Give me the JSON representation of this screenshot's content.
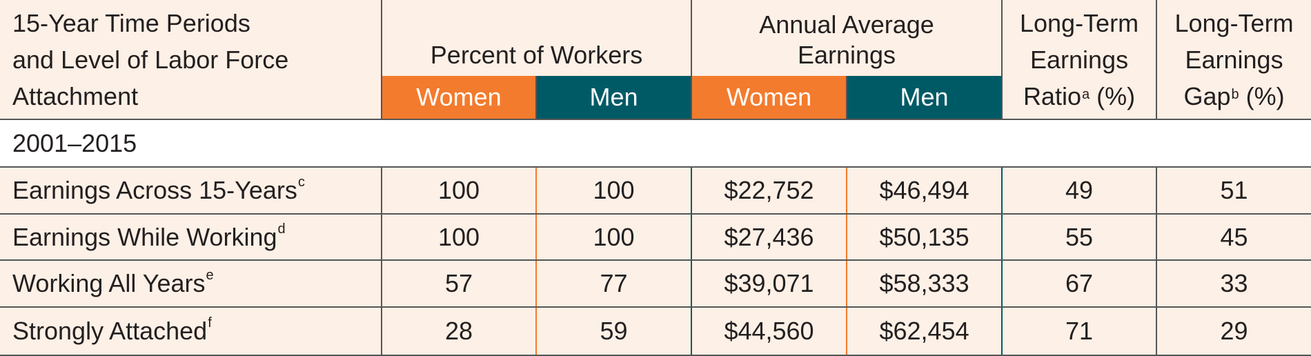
{
  "header": {
    "col0": [
      "15-Year Time Periods",
      "and Level of Labor Force",
      "Attachment"
    ],
    "percent_workers": "Percent of Workers",
    "annual_avg": [
      "Annual Average",
      "Earnings"
    ],
    "ratio": {
      "line1": "Long-Term",
      "line2": "Earnings",
      "line3": "Ratio",
      "sup": "a",
      "unit": " (%)"
    },
    "gap": {
      "line1": "Long-Term",
      "line2": "Earnings",
      "line3": "Gap",
      "sup": "b",
      "unit": " (%)"
    },
    "women": "Women",
    "men": "Men"
  },
  "section": "2001–2015",
  "rows": [
    {
      "label": "Earnings Across 15-Years",
      "sup": "c",
      "pct_women": "100",
      "pct_men": "100",
      "earn_women": "$22,752",
      "earn_men": "$46,494",
      "ratio": "49",
      "gap": "51"
    },
    {
      "label": "Earnings While Working",
      "sup": "d",
      "pct_women": "100",
      "pct_men": "100",
      "earn_women": "$27,436",
      "earn_men": "$50,135",
      "ratio": "55",
      "gap": "45"
    },
    {
      "label": "Working All Years",
      "sup": "e",
      "pct_women": "57",
      "pct_men": "77",
      "earn_women": "$39,071",
      "earn_men": "$58,333",
      "ratio": "67",
      "gap": "33"
    },
    {
      "label": "Strongly Attached",
      "sup": "f",
      "pct_women": "28",
      "pct_men": "59",
      "earn_women": "$44,560",
      "earn_men": "$62,454",
      "ratio": "71",
      "gap": "29"
    }
  ],
  "colors": {
    "women": "#f37b2d",
    "men": "#005a66",
    "background": "#fdf0e6",
    "border": "#555555"
  }
}
